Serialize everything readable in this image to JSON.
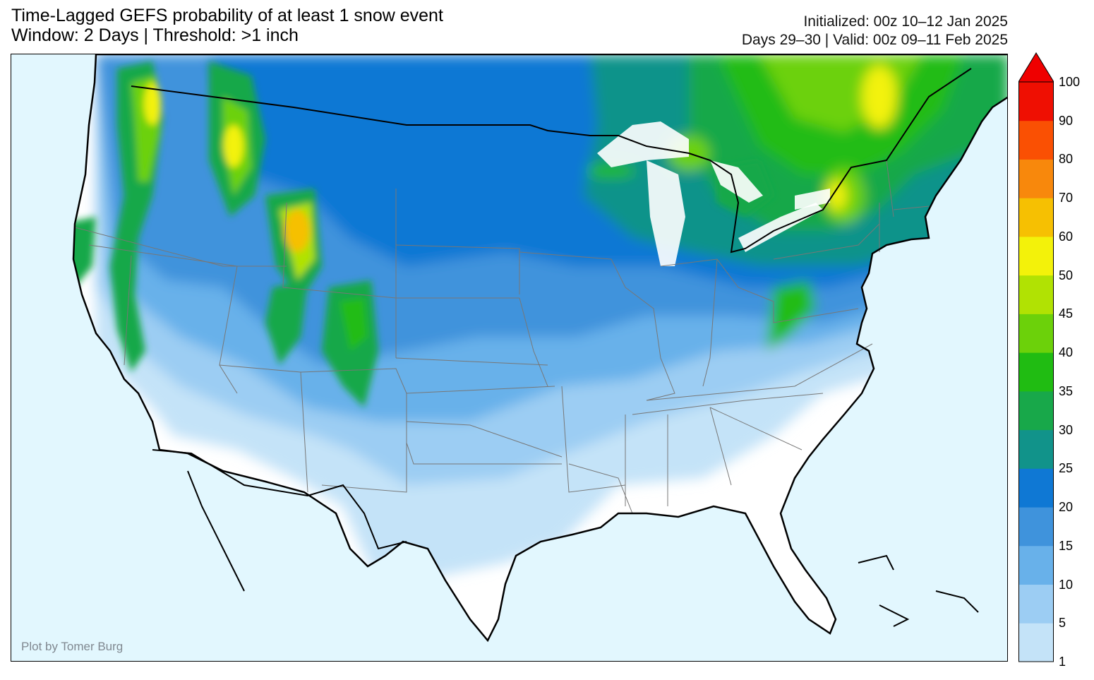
{
  "title": {
    "line1": "Time-Lagged GEFS probability of at least 1 snow event",
    "line2": "Window: 2 Days | Threshold: >1 inch"
  },
  "meta": {
    "line1": "Initialized: 00z 10–12 Jan 2025",
    "line2": "Days 29–30 | Valid: 00z 09–11 Feb 2025"
  },
  "credit": "Plot by Tomer Burg",
  "colorbar": {
    "ticks": [
      "1",
      "5",
      "10",
      "15",
      "20",
      "25",
      "30",
      "35",
      "40",
      "45",
      "50",
      "60",
      "70",
      "80",
      "90",
      "100"
    ],
    "colors": [
      "#c4e3f8",
      "#9ccdf3",
      "#68b1ea",
      "#3f93dc",
      "#0f78d4",
      "#11938a",
      "#18a84a",
      "#20bc12",
      "#6cd10a",
      "#b1e203",
      "#f3f20a",
      "#f6c002",
      "#f8880c",
      "#fa5003",
      "#ef0f02"
    ],
    "extend": "max",
    "extend_color": "#ef0000"
  },
  "map": {
    "ocean_color": "#e2f7fe",
    "land_color": "#ffffff",
    "region": "Contiguous United States",
    "variable": "snow event probability (%)"
  }
}
